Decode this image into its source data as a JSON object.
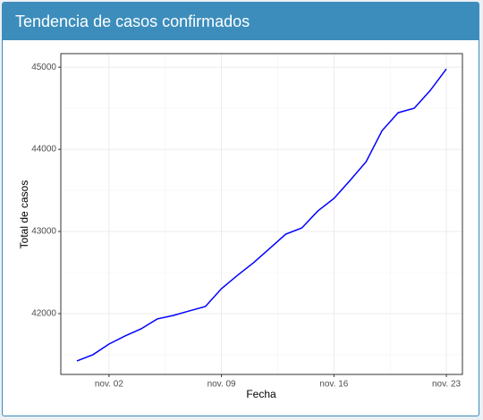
{
  "chart_data": {
    "type": "line",
    "title": "Tendencia de casos confirmados",
    "x_label": "Fecha",
    "y_label": "Total de casos",
    "x": [
      "10-31",
      "11-01",
      "11-02",
      "11-03",
      "11-04",
      "11-05",
      "11-06",
      "11-07",
      "11-08",
      "11-09",
      "11-10",
      "11-11",
      "11-12",
      "11-13",
      "11-14",
      "11-15",
      "11-16",
      "11-17",
      "11-18",
      "11-19",
      "11-20",
      "11-21",
      "11-22",
      "11-23"
    ],
    "series": [
      {
        "name": "Total de casos",
        "color": "#0000ff",
        "values": [
          41424,
          41500,
          41630,
          41728,
          41815,
          41935,
          41978,
          42033,
          42087,
          42304,
          42467,
          42620,
          42793,
          42967,
          43043,
          43250,
          43402,
          43620,
          43848,
          44228,
          44446,
          44500,
          44717,
          44978
        ]
      }
    ],
    "xlim": [
      "10-30",
      "11-24"
    ],
    "xticks": [
      {
        "value": "11-02",
        "label": "nov. 02"
      },
      {
        "value": "11-09",
        "label": "nov. 09"
      },
      {
        "value": "11-16",
        "label": "nov. 16"
      },
      {
        "value": "11-23",
        "label": "nov. 23"
      }
    ],
    "ylim": [
      41260,
      45165
    ],
    "yticks": [
      42000,
      43000,
      44000,
      45000
    ],
    "grid": true
  }
}
